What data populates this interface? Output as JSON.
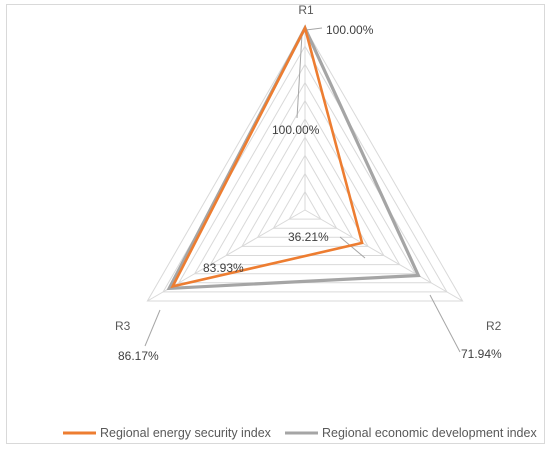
{
  "chart_data": {
    "type": "radar",
    "axes": [
      "R1",
      "R2",
      "R3"
    ],
    "range": [
      0,
      1
    ],
    "gridlines": true,
    "legend_position": "bottom",
    "series": [
      {
        "name": "Regional energy security index",
        "color": "#ed7d31",
        "values": [
          1.0,
          0.3621,
          0.8393
        ],
        "labels": [
          "100.00%",
          "36.21%",
          "83.93%"
        ]
      },
      {
        "name": "Regional economic development index",
        "color": "#a5a5a5",
        "values": [
          1.0,
          0.7194,
          0.8617
        ],
        "labels": [
          "100.00%",
          "71.94%",
          "86.17%"
        ]
      }
    ]
  }
}
